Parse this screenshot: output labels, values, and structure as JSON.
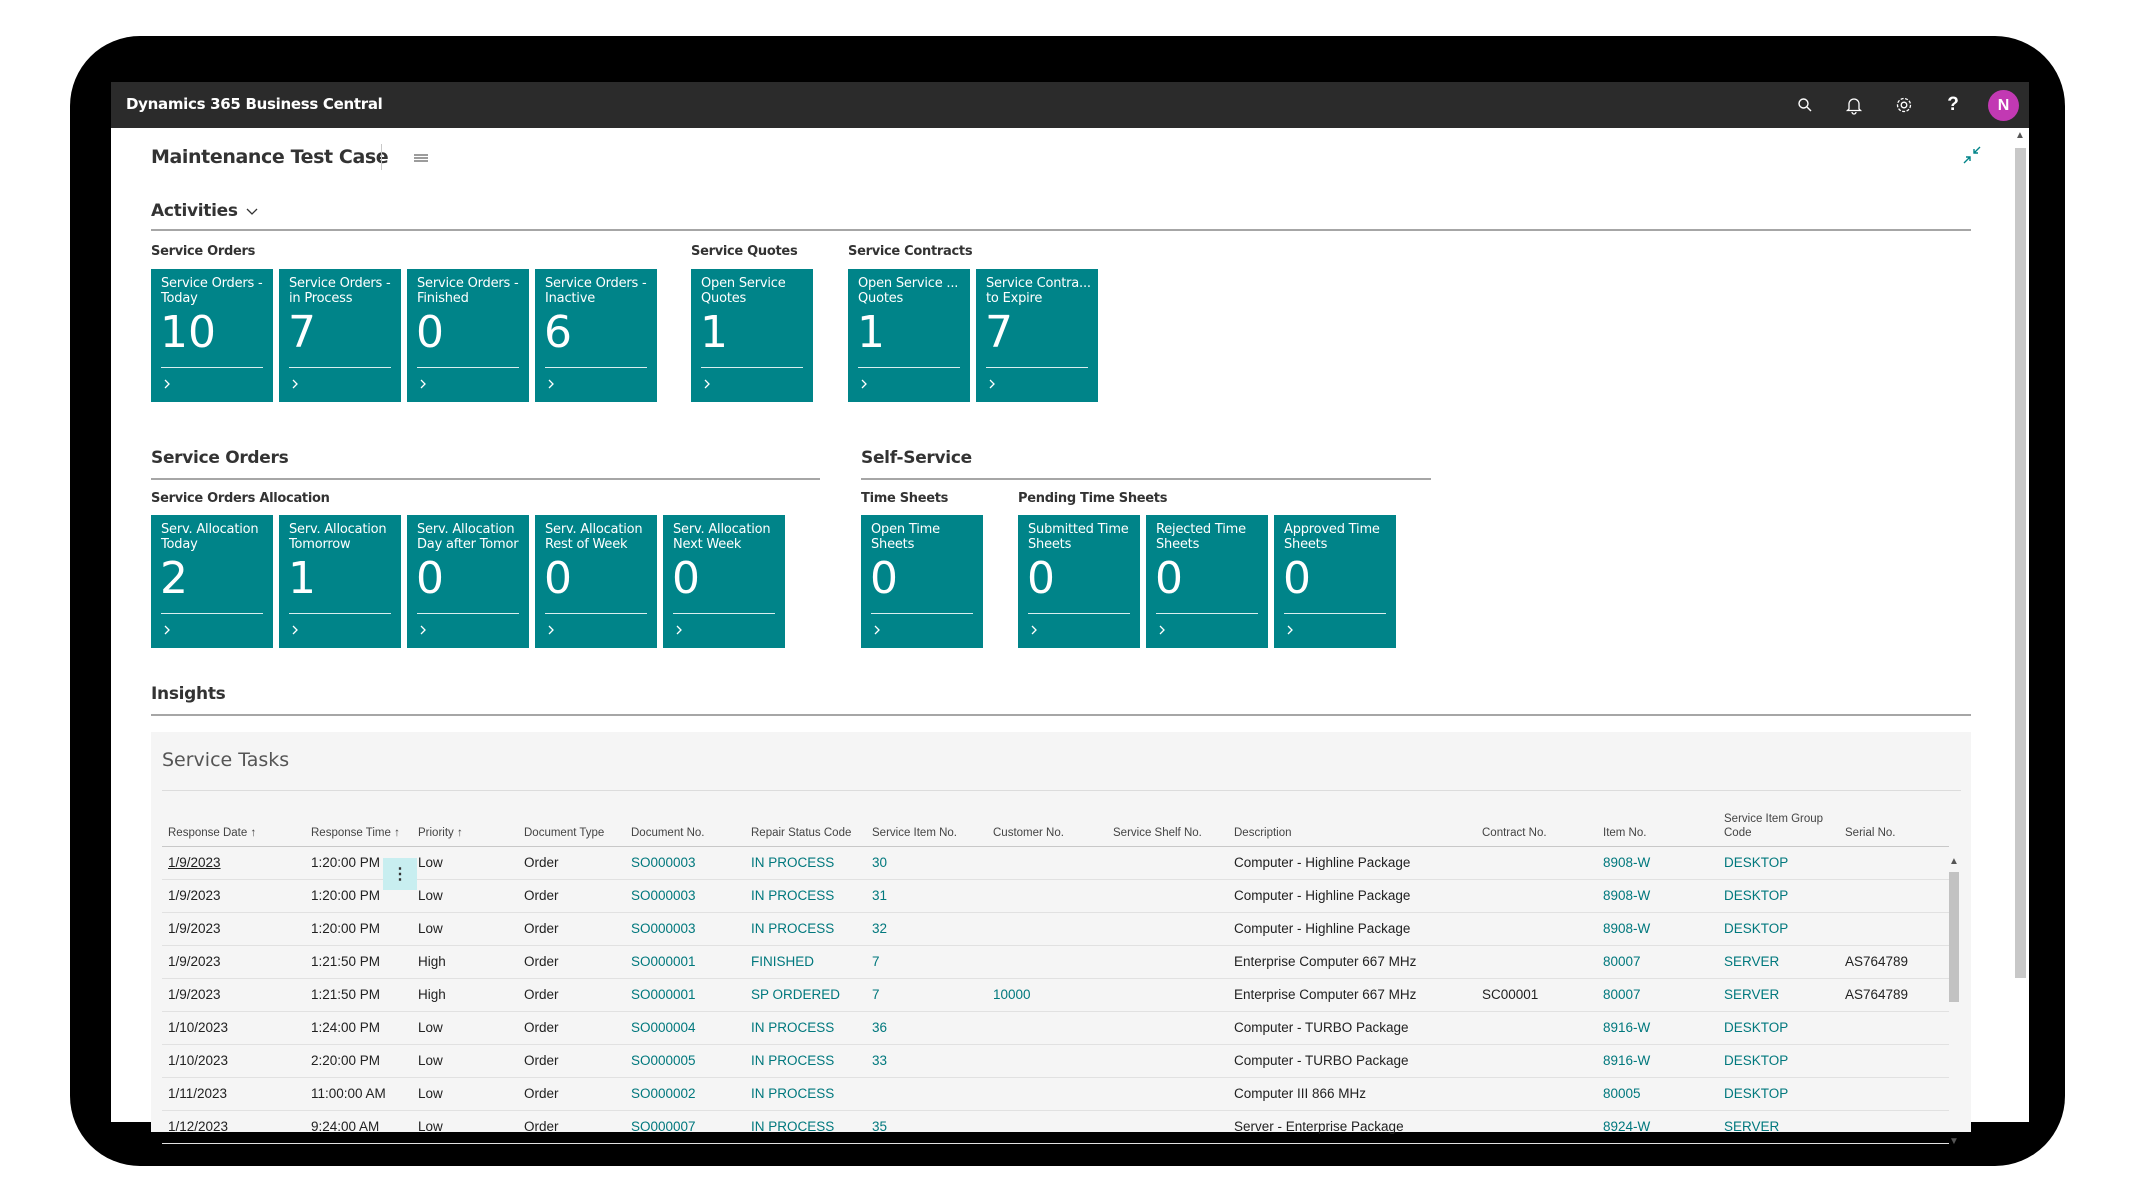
{
  "app": {
    "title": "Dynamics 365 Business Central",
    "avatar_initial": "N",
    "accent": "#008489",
    "avatar_color": "#c239b3"
  },
  "topbar_icons": [
    "search-icon",
    "bell-icon",
    "gear-icon",
    "help-icon"
  ],
  "page": {
    "title": "Maintenance Test Case"
  },
  "activities": {
    "heading": "Activities",
    "groups": [
      {
        "label": "Service Orders",
        "tiles": [
          {
            "label": "Service Orders - Today",
            "value": "10"
          },
          {
            "label": "Service Orders - in Process",
            "value": "7"
          },
          {
            "label": "Service Orders - Finished",
            "value": "0"
          },
          {
            "label": "Service Orders - Inactive",
            "value": "6"
          }
        ]
      },
      {
        "label": "Service Quotes",
        "tiles": [
          {
            "label": "Open Service Quotes",
            "value": "1"
          }
        ]
      },
      {
        "label": "Service Contracts",
        "tiles": [
          {
            "label": "Open Service ... Quotes",
            "value": "1"
          },
          {
            "label": "Service Contra... to Expire",
            "value": "7"
          }
        ]
      }
    ]
  },
  "service_orders": {
    "heading": "Service Orders",
    "group_label": "Service Orders Allocation",
    "tiles": [
      {
        "label": "Serv. Allocation Today",
        "value": "2"
      },
      {
        "label": "Serv. Allocation Tomorrow",
        "value": "1"
      },
      {
        "label": "Serv. Allocation Day after Tomor",
        "value": "0"
      },
      {
        "label": "Serv. Allocation Rest of Week",
        "value": "0"
      },
      {
        "label": "Serv. Allocation Next Week",
        "value": "0"
      }
    ]
  },
  "self_service": {
    "heading": "Self-Service",
    "groups": [
      {
        "label": "Time Sheets",
        "tiles": [
          {
            "label": "Open Time Sheets",
            "value": "0"
          }
        ]
      },
      {
        "label": "Pending Time Sheets",
        "tiles": [
          {
            "label": "Submitted Time Sheets",
            "value": "0"
          },
          {
            "label": "Rejected Time Sheets",
            "value": "0"
          },
          {
            "label": "Approved Time Sheets",
            "value": "0"
          }
        ]
      }
    ]
  },
  "insights": {
    "heading": "Insights",
    "service_tasks": {
      "title": "Service Tasks",
      "columns": [
        "Response Date ↑",
        "Response Time ↑",
        "Priority ↑",
        "Document Type",
        "Document No.",
        "Repair Status Code",
        "Service Item No.",
        "Customer No.",
        "Service Shelf No.",
        "Description",
        "Contract No.",
        "Item No.",
        "Service Item Group Code",
        "Serial No."
      ],
      "rows": [
        [
          "1/9/2023",
          "1:20:00 PM",
          "Low",
          "Order",
          "SO000003",
          "IN PROCESS",
          "30",
          "",
          "",
          "Computer - Highline Package",
          "",
          "8908-W",
          "DESKTOP",
          ""
        ],
        [
          "1/9/2023",
          "1:20:00 PM",
          "Low",
          "Order",
          "SO000003",
          "IN PROCESS",
          "31",
          "",
          "",
          "Computer - Highline Package",
          "",
          "8908-W",
          "DESKTOP",
          ""
        ],
        [
          "1/9/2023",
          "1:20:00 PM",
          "Low",
          "Order",
          "SO000003",
          "IN PROCESS",
          "32",
          "",
          "",
          "Computer - Highline Package",
          "",
          "8908-W",
          "DESKTOP",
          ""
        ],
        [
          "1/9/2023",
          "1:21:50 PM",
          "High",
          "Order",
          "SO000001",
          "FINISHED",
          "7",
          "",
          "",
          "Enterprise Computer 667 MHz",
          "",
          "80007",
          "SERVER",
          "AS764789"
        ],
        [
          "1/9/2023",
          "1:21:50 PM",
          "High",
          "Order",
          "SO000001",
          "SP ORDERED",
          "7",
          "10000",
          "",
          "Enterprise Computer 667 MHz",
          "SC00001",
          "80007",
          "SERVER",
          "AS764789"
        ],
        [
          "1/10/2023",
          "1:24:00 PM",
          "Low",
          "Order",
          "SO000004",
          "IN PROCESS",
          "36",
          "",
          "",
          "Computer - TURBO Package",
          "",
          "8916-W",
          "DESKTOP",
          ""
        ],
        [
          "1/10/2023",
          "2:20:00 PM",
          "Low",
          "Order",
          "SO000005",
          "IN PROCESS",
          "33",
          "",
          "",
          "Computer - TURBO Package",
          "",
          "8916-W",
          "DESKTOP",
          ""
        ],
        [
          "1/11/2023",
          "11:00:00 AM",
          "Low",
          "Order",
          "SO000002",
          "IN PROCESS",
          "",
          "",
          "",
          "Computer III 866 MHz",
          "",
          "80005",
          "DESKTOP",
          ""
        ],
        [
          "1/12/2023",
          "9:24:00 AM",
          "Low",
          "Order",
          "SO000007",
          "IN PROCESS",
          "35",
          "",
          "",
          "Server - Enterprise Package",
          "",
          "8924-W",
          "SERVER",
          ""
        ]
      ]
    }
  }
}
